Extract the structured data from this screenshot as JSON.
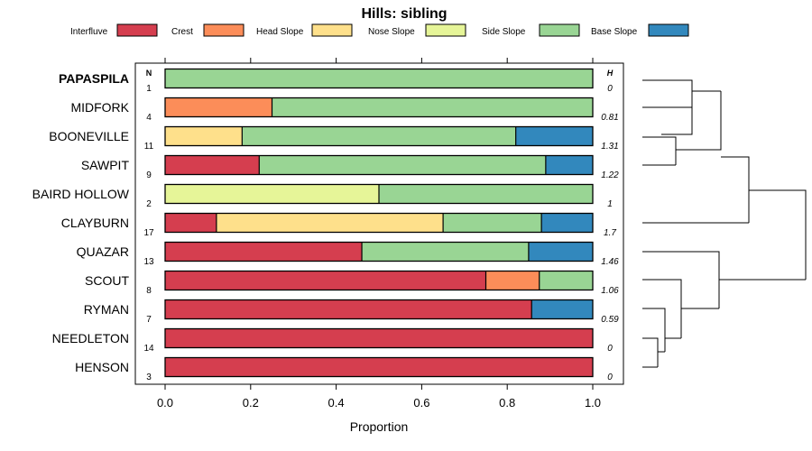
{
  "chart_data": {
    "type": "stacked-bar",
    "title": "Hills: sibling",
    "xlabel": "Proportion",
    "xlim": [
      0,
      1
    ],
    "x_ticks": [
      "0.0",
      "0.2",
      "0.4",
      "0.6",
      "0.8",
      "1.0"
    ],
    "n_header": "N",
    "h_header": "H",
    "legend": [
      {
        "name": "Interfluve",
        "color": "#D53E4F"
      },
      {
        "name": "Crest",
        "color": "#FC8D59"
      },
      {
        "name": "Head Slope",
        "color": "#FEE08B"
      },
      {
        "name": "Nose Slope",
        "color": "#E6F598"
      },
      {
        "name": "Side Slope",
        "color": "#99D594"
      },
      {
        "name": "Base Slope",
        "color": "#3288BD"
      }
    ],
    "rows": [
      {
        "name": "PAPASPILA",
        "bold": true,
        "n": "1",
        "h": "0",
        "values": [
          0,
          0,
          0,
          0,
          1.0,
          0
        ]
      },
      {
        "name": "MIDFORK",
        "bold": false,
        "n": "4",
        "h": "0.81",
        "values": [
          0,
          0.25,
          0,
          0,
          0.75,
          0
        ]
      },
      {
        "name": "BOONEVILLE",
        "bold": false,
        "n": "11",
        "h": "1.31",
        "values": [
          0,
          0,
          0.18,
          0,
          0.64,
          0.18
        ]
      },
      {
        "name": "SAWPIT",
        "bold": false,
        "n": "9",
        "h": "1.22",
        "values": [
          0.22,
          0,
          0,
          0,
          0.67,
          0.11
        ]
      },
      {
        "name": "BAIRD HOLLOW",
        "bold": false,
        "n": "2",
        "h": "1",
        "values": [
          0,
          0,
          0,
          0.5,
          0.5,
          0
        ]
      },
      {
        "name": "CLAYBURN",
        "bold": false,
        "n": "17",
        "h": "1.7",
        "values": [
          0.12,
          0,
          0.53,
          0,
          0.23,
          0.12
        ]
      },
      {
        "name": "QUAZAR",
        "bold": false,
        "n": "13",
        "h": "1.46",
        "values": [
          0.46,
          0,
          0,
          0,
          0.39,
          0.15
        ]
      },
      {
        "name": "SCOUT",
        "bold": false,
        "n": "8",
        "h": "1.06",
        "values": [
          0.75,
          0.125,
          0,
          0,
          0.125,
          0
        ]
      },
      {
        "name": "RYMAN",
        "bold": false,
        "n": "7",
        "h": "0.59",
        "values": [
          0.857,
          0,
          0,
          0,
          0,
          0.143
        ]
      },
      {
        "name": "NEEDLETON",
        "bold": false,
        "n": "14",
        "h": "0",
        "values": [
          1.0,
          0,
          0,
          0,
          0,
          0
        ]
      },
      {
        "name": "HENSON",
        "bold": false,
        "n": "3",
        "h": "0",
        "values": [
          1.0,
          0,
          0,
          0,
          0,
          0
        ]
      }
    ]
  }
}
